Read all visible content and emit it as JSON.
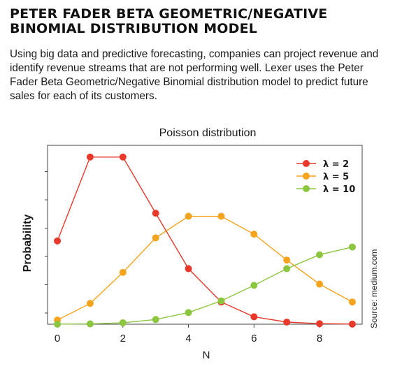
{
  "article": {
    "headline": "PETER FADER BETA GEOMETRIC/NEGATIVE BINOMIAL DISTRIBUTION MODEL",
    "intro": "Using big data and predictive forecasting, companies can project revenue and identify revenue streams that are not performing well. Lexer uses the Peter Fader Beta Geometric/Negative Binomial distribution model to predict future sales for each of its customers.",
    "source": "Source: medium.com"
  },
  "chart_data": {
    "type": "line",
    "title": "Poisson distribution",
    "xlabel": "N",
    "ylabel": "Probability",
    "xlim": [
      -0.3,
      9.3
    ],
    "ylim": [
      0,
      0.29
    ],
    "x_ticks": [
      0,
      2,
      4,
      6,
      8
    ],
    "y_tick_count": 6,
    "grid": false,
    "legend_position": "top-right",
    "x": [
      0,
      1,
      2,
      3,
      4,
      5,
      6,
      7,
      8,
      9
    ],
    "series": [
      {
        "name": "λ = 2",
        "color": "#e8392a",
        "values": [
          0.135,
          0.271,
          0.271,
          0.18,
          0.09,
          0.036,
          0.012,
          0.0034,
          0.0009,
          0.0002
        ]
      },
      {
        "name": "λ = 5",
        "color": "#f5a41f",
        "values": [
          0.0067,
          0.0337,
          0.084,
          0.14,
          0.175,
          0.175,
          0.146,
          0.104,
          0.065,
          0.036
        ]
      },
      {
        "name": "λ = 10",
        "color": "#8cc63f",
        "values": [
          5e-05,
          0.0005,
          0.0023,
          0.0076,
          0.0189,
          0.0378,
          0.063,
          0.09,
          0.1126,
          0.1251
        ]
      }
    ]
  }
}
